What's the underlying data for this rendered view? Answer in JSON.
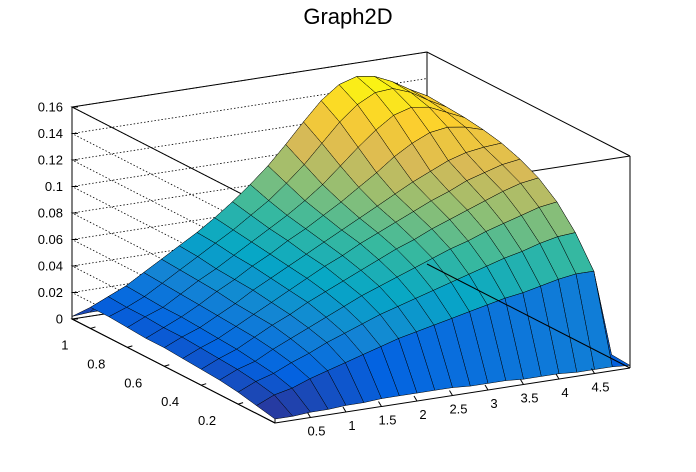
{
  "chart_data": {
    "type": "surface",
    "title": "Graph2D",
    "xlabel": "",
    "ylabel": "",
    "zlabel": "",
    "xlim": [
      0,
      5
    ],
    "ylim": [
      0,
      1.1
    ],
    "zlim": [
      0,
      0.16
    ],
    "x_ticks": [
      "0.5",
      "1",
      "1.5",
      "2",
      "2.5",
      "3",
      "3.5",
      "4",
      "4.5"
    ],
    "y_ticks": [
      "0.2",
      "0.4",
      "0.6",
      "0.8",
      "1"
    ],
    "z_ticks": [
      "0",
      "0.02",
      "0.04",
      "0.06",
      "0.08",
      "0.1",
      "0.12",
      "0.14",
      "0.16"
    ],
    "x_tick_values": [
      0.5,
      1,
      1.5,
      2,
      2.5,
      3,
      3.5,
      4,
      4.5
    ],
    "y_tick_values": [
      0.2,
      0.4,
      0.6,
      0.8,
      1.0
    ],
    "z_tick_values": [
      0,
      0.02,
      0.04,
      0.06,
      0.08,
      0.1,
      0.12,
      0.14,
      0.16
    ],
    "grid": true,
    "colormap": [
      "#352a87",
      "#0363e1",
      "#1485d4",
      "#06a7c6",
      "#38b99e",
      "#92bf73",
      "#d9ba56",
      "#fcce2e",
      "#f9fb0e"
    ],
    "surface_x": [
      0,
      0.25,
      0.5,
      0.75,
      1.0,
      1.25,
      1.5,
      1.75,
      2.0,
      2.25,
      2.5,
      2.75,
      3.0,
      3.25,
      3.5,
      3.75,
      4.0,
      4.25,
      4.5,
      4.75,
      5.0
    ],
    "surface_y": [
      0,
      0.1,
      0.2,
      0.3,
      0.4,
      0.5,
      0.6,
      0.7,
      0.8,
      0.9,
      1.0,
      1.1
    ],
    "surface_z": [
      [
        0.003,
        0.003,
        0.004,
        0.004,
        0.005,
        0.005,
        0.006,
        0.006,
        0.006,
        0.006,
        0.006,
        0.005,
        0.005,
        0.005,
        0.004,
        0.004,
        0.004,
        0.003,
        0.003,
        0.003,
        0.002
      ],
      [
        0.006,
        0.012,
        0.015,
        0.02,
        0.024,
        0.028,
        0.032,
        0.036,
        0.04,
        0.043,
        0.046,
        0.049,
        0.052,
        0.055,
        0.058,
        0.06,
        0.063,
        0.066,
        0.068,
        0.068,
        0.003
      ],
      [
        0.009,
        0.015,
        0.019,
        0.025,
        0.03,
        0.036,
        0.041,
        0.046,
        0.051,
        0.055,
        0.059,
        0.063,
        0.067,
        0.071,
        0.075,
        0.079,
        0.082,
        0.086,
        0.089,
        0.09,
        0.003
      ],
      [
        0.011,
        0.017,
        0.021,
        0.028,
        0.034,
        0.04,
        0.046,
        0.052,
        0.058,
        0.063,
        0.068,
        0.073,
        0.078,
        0.083,
        0.087,
        0.092,
        0.096,
        0.1,
        0.104,
        0.106,
        0.003
      ],
      [
        0.012,
        0.018,
        0.023,
        0.03,
        0.037,
        0.043,
        0.05,
        0.056,
        0.062,
        0.068,
        0.074,
        0.08,
        0.085,
        0.091,
        0.096,
        0.101,
        0.106,
        0.111,
        0.115,
        0.117,
        0.003
      ],
      [
        0.013,
        0.019,
        0.024,
        0.031,
        0.038,
        0.045,
        0.052,
        0.059,
        0.066,
        0.072,
        0.079,
        0.085,
        0.091,
        0.097,
        0.103,
        0.108,
        0.114,
        0.118,
        0.122,
        0.124,
        0.003
      ],
      [
        0.014,
        0.02,
        0.025,
        0.032,
        0.039,
        0.047,
        0.054,
        0.061,
        0.068,
        0.075,
        0.082,
        0.089,
        0.096,
        0.103,
        0.11,
        0.116,
        0.122,
        0.126,
        0.128,
        0.129,
        0.003
      ],
      [
        0.014,
        0.02,
        0.026,
        0.033,
        0.041,
        0.048,
        0.056,
        0.063,
        0.071,
        0.078,
        0.086,
        0.094,
        0.103,
        0.112,
        0.122,
        0.13,
        0.136,
        0.138,
        0.136,
        0.132,
        0.003
      ],
      [
        0.015,
        0.021,
        0.026,
        0.034,
        0.042,
        0.049,
        0.057,
        0.065,
        0.073,
        0.081,
        0.09,
        0.1,
        0.112,
        0.124,
        0.135,
        0.144,
        0.148,
        0.146,
        0.14,
        0.134,
        0.003
      ],
      [
        0.016,
        0.021,
        0.027,
        0.035,
        0.043,
        0.051,
        0.059,
        0.067,
        0.076,
        0.085,
        0.096,
        0.108,
        0.122,
        0.136,
        0.147,
        0.154,
        0.155,
        0.15,
        0.142,
        0.135,
        0.003
      ],
      [
        0.016,
        0.022,
        0.028,
        0.036,
        0.044,
        0.052,
        0.06,
        0.069,
        0.079,
        0.09,
        0.102,
        0.116,
        0.131,
        0.145,
        0.155,
        0.159,
        0.157,
        0.151,
        0.143,
        0.136,
        0.003
      ],
      [
        0.002,
        0.003,
        0.003,
        0.004,
        0.004,
        0.005,
        0.005,
        0.006,
        0.006,
        0.007,
        0.007,
        0.007,
        0.007,
        0.007,
        0.007,
        0.006,
        0.006,
        0.005,
        0.005,
        0.004,
        0.002
      ]
    ]
  }
}
